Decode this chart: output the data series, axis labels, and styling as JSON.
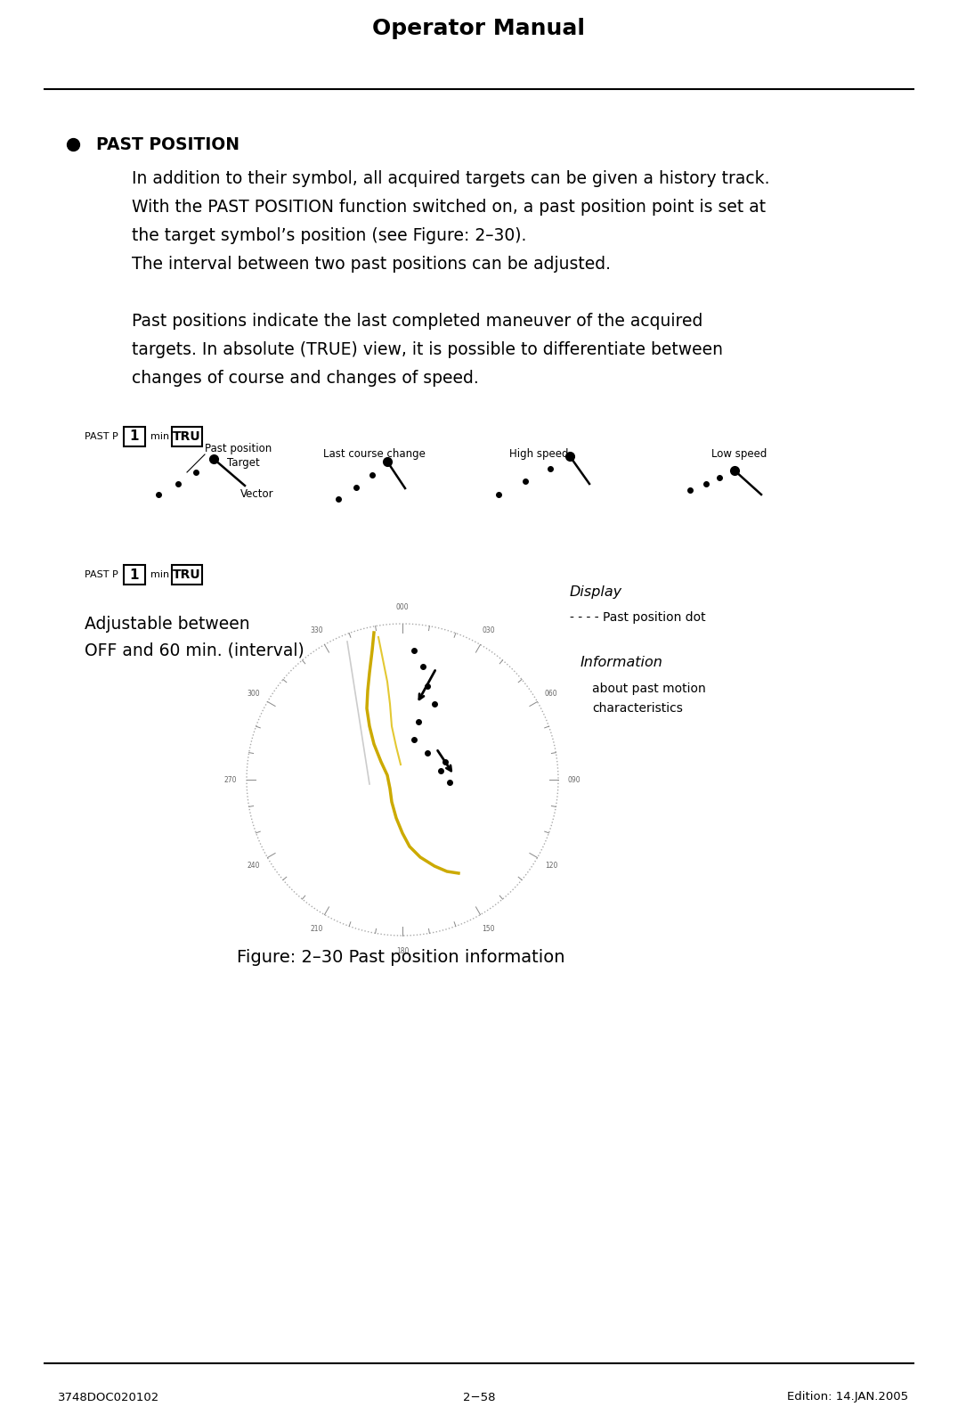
{
  "title": "Operator Manual",
  "footer_left": "3748DOC020102",
  "footer_center": "2−58",
  "footer_right": "Edition: 14.JAN.2005",
  "bullet_heading": "PAST POSITION",
  "para1_line1": "In addition to their symbol, all acquired targets can be given a history track.",
  "para1_line2": "With the PAST POSITION function switched on, a past position point is set at",
  "para1_line3": "the target symbol’s position (see Figure: 2–30).",
  "para1_line4": "The interval between two past positions can be adjusted.",
  "para2_line1": "Past positions indicate the last completed maneuver of the acquired",
  "para2_line2": "targets. In absolute (TRUE) view, it is possible to differentiate between",
  "para2_line3": "changes of course and changes of speed.",
  "label_past_p": "PAST P",
  "label_1": "1",
  "label_min": "min",
  "label_tru": "TRU",
  "label_last_course": "Last course change",
  "label_high_speed": "High speed",
  "label_low_speed": "Low speed",
  "label_past_position": "Past position",
  "label_target": "Target",
  "label_vector": "Vector",
  "label_adjustable": "Adjustable between\nOFF and 60 min. (interval)",
  "label_display": "Display",
  "label_past_dot": "- - - - Past position dot",
  "label_information": "Information",
  "label_about": "about past motion\ncharacteristics",
  "figure_caption": "Figure: 2–30 Past position information",
  "bg_color": "#ffffff",
  "text_color": "#000000",
  "title_fontsize": 18,
  "body_fontsize": 13.5,
  "small_fontsize": 10
}
